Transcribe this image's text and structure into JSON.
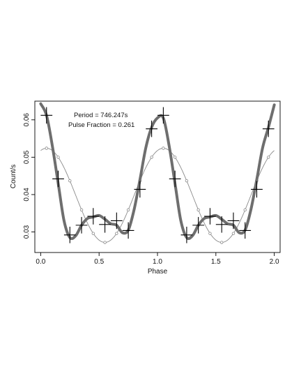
{
  "chart_data": {
    "type": "line",
    "title": "",
    "xlabel": "Phase",
    "ylabel": "Count/s",
    "xlim": [
      -0.05,
      2.05
    ],
    "ylim": [
      0.0245,
      0.065
    ],
    "xticks": [
      0.0,
      0.5,
      1.0,
      1.5,
      2.0
    ],
    "xtick_labels": [
      "0.0",
      "0.5",
      "1.0",
      "1.5",
      "2.0"
    ],
    "yticks": [
      0.03,
      0.04,
      0.05,
      0.06
    ],
    "ytick_labels": [
      "0.03",
      "0.04",
      "0.05",
      "0.06"
    ],
    "grid": false,
    "legend": false,
    "annotations": [
      "Period = 746.247s",
      "Pulse Fraction = 0.261"
    ],
    "colors": {
      "data_markers": "#000000",
      "smooth_curve": "#6e6e6e",
      "sine_fit": "#8a8a8a"
    },
    "data_points": {
      "x": [
        0.05,
        0.15,
        0.25,
        0.35,
        0.45,
        0.55,
        0.65,
        0.75,
        0.85,
        0.95,
        1.05,
        1.15,
        1.25,
        1.35,
        1.45,
        1.55,
        1.65,
        1.75,
        1.85,
        1.95
      ],
      "y": [
        0.0612,
        0.0442,
        0.0292,
        0.0318,
        0.0342,
        0.032,
        0.033,
        0.0304,
        0.0414,
        0.0576,
        0.0612,
        0.0442,
        0.0292,
        0.0318,
        0.0342,
        0.032,
        0.033,
        0.0304,
        0.0414,
        0.0576
      ],
      "xerr": 0.05,
      "yerr": 0.0022
    },
    "smooth_curve": {
      "x": [
        0.0,
        0.05,
        0.1,
        0.15,
        0.2,
        0.25,
        0.3,
        0.35,
        0.4,
        0.45,
        0.5,
        0.55,
        0.6,
        0.65,
        0.7,
        0.75,
        0.8,
        0.85,
        0.9,
        0.95,
        1.0,
        1.05,
        1.1,
        1.15,
        1.2,
        1.25,
        1.3,
        1.35,
        1.4,
        1.45,
        1.5,
        1.55,
        1.6,
        1.65,
        1.7,
        1.75,
        1.8,
        1.85,
        1.9,
        1.95,
        2.0
      ],
      "y": [
        0.0643,
        0.0612,
        0.053,
        0.043,
        0.033,
        0.0285,
        0.029,
        0.0318,
        0.0336,
        0.034,
        0.0344,
        0.0334,
        0.0322,
        0.0318,
        0.0298,
        0.0305,
        0.036,
        0.044,
        0.0525,
        0.058,
        0.0605,
        0.0605,
        0.053,
        0.043,
        0.033,
        0.0285,
        0.029,
        0.0318,
        0.0336,
        0.034,
        0.0344,
        0.0334,
        0.0322,
        0.0318,
        0.0298,
        0.0305,
        0.036,
        0.044,
        0.0525,
        0.058,
        0.064
      ]
    },
    "sine_fit": {
      "mean": 0.0398,
      "amplitude": 0.0126,
      "period": 1.0,
      "peak_phase": 0.05,
      "marker_x": [
        0.05,
        0.15,
        0.25,
        0.35,
        0.45,
        0.55,
        0.65,
        0.75,
        0.85,
        0.95,
        1.05,
        1.15,
        1.25,
        1.35,
        1.45,
        1.55,
        1.65,
        1.75,
        1.85,
        1.95
      ]
    }
  }
}
